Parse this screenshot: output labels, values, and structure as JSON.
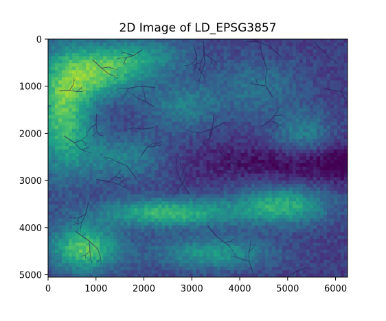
{
  "figure": {
    "title": "2D Image of LD_EPSG3857",
    "colormap": "viridis",
    "colormap_stops": [
      "#440154",
      "#46337e",
      "#365c8d",
      "#277f8e",
      "#1fa187",
      "#4ac16d",
      "#a0da39",
      "#fde725"
    ]
  },
  "chart_data": {
    "type": "heatmap",
    "title": "2D Image of LD_EPSG3857",
    "xlabel": "",
    "ylabel": "",
    "xlim": [
      0,
      6250
    ],
    "ylim": [
      5050,
      0
    ],
    "x_ticks": [
      "0",
      "1000",
      "2000",
      "3000",
      "4000",
      "5000",
      "6000"
    ],
    "y_ticks": [
      "0",
      "1000",
      "2000",
      "3000",
      "4000",
      "5000"
    ],
    "x_tick_values": [
      0,
      1000,
      2000,
      3000,
      4000,
      5000,
      6000
    ],
    "y_tick_values": [
      0,
      1000,
      2000,
      3000,
      4000,
      5000
    ],
    "grid": false,
    "legend": "none"
  }
}
